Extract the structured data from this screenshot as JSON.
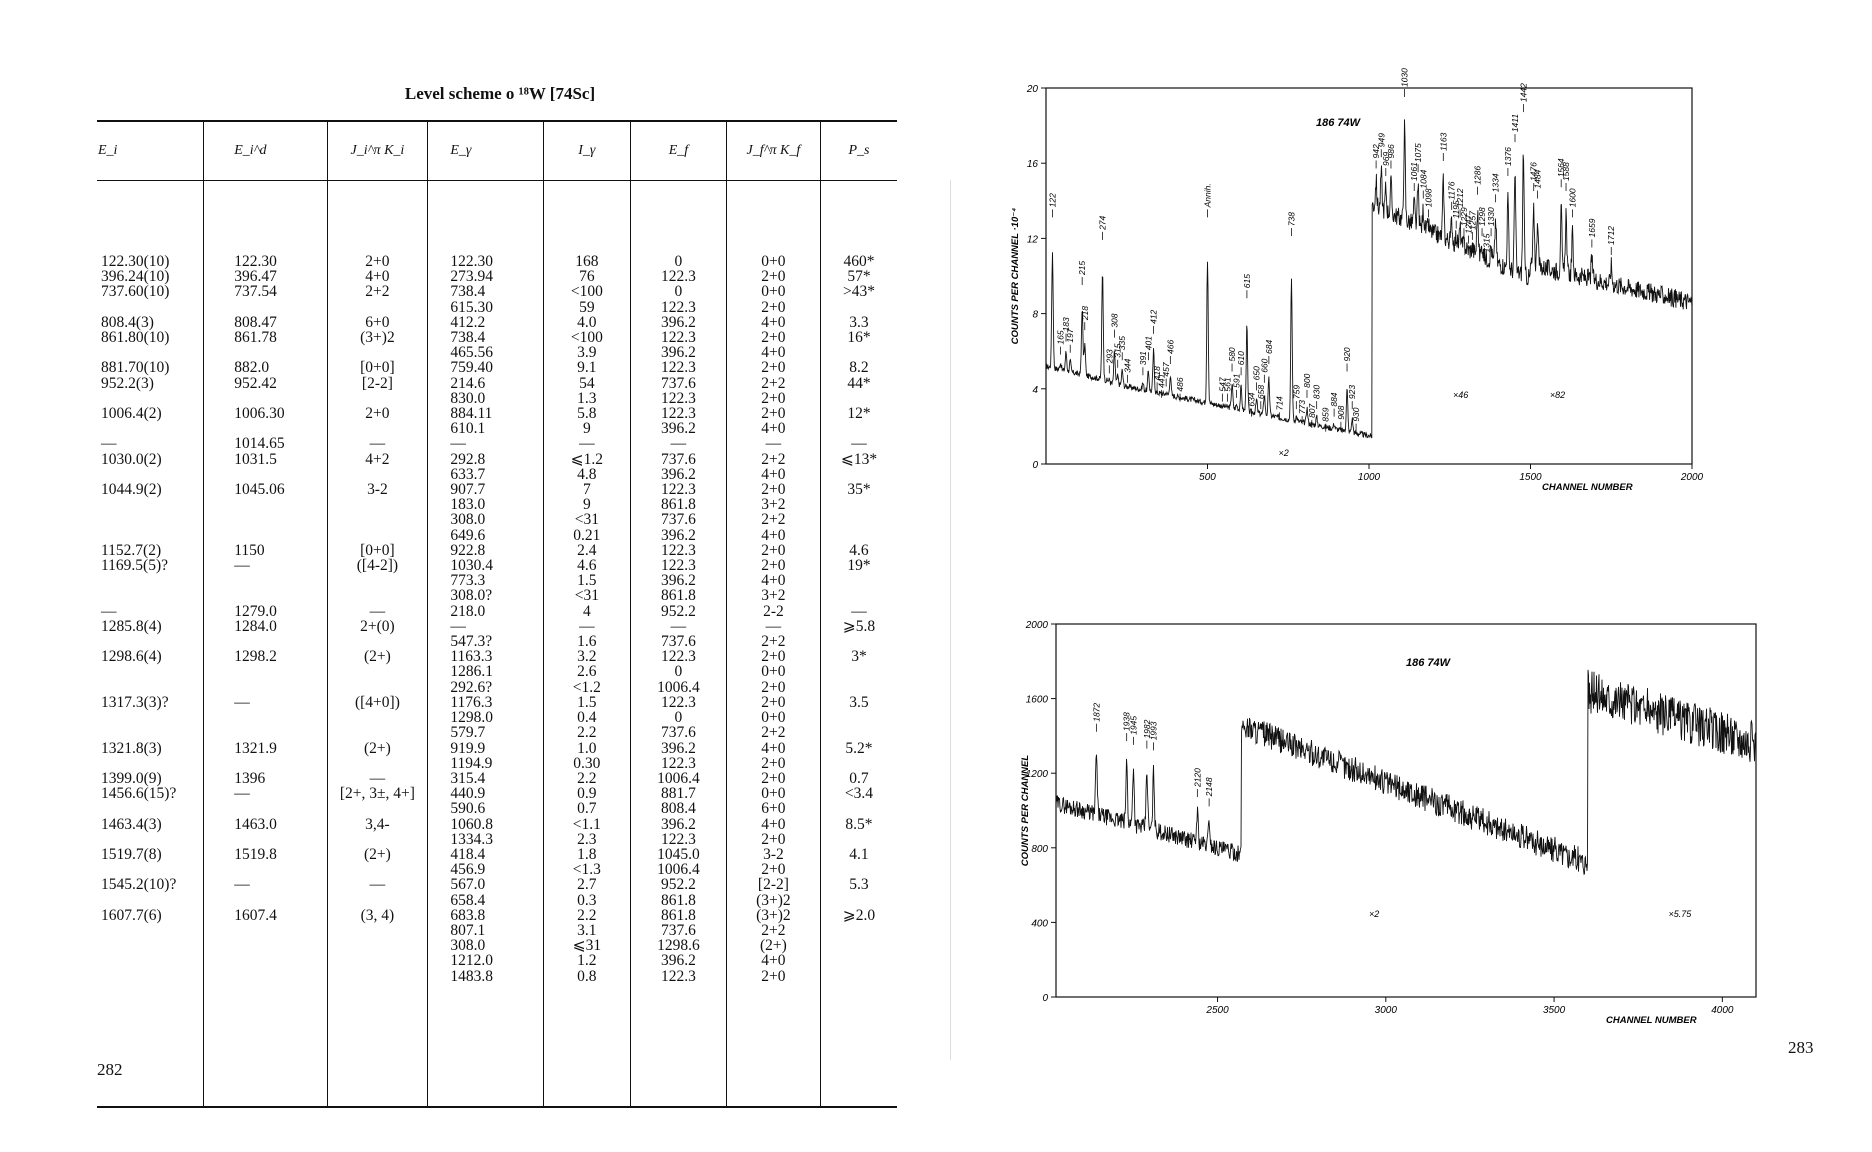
{
  "left_page": {
    "title": "Level scheme o  ¹⁸W [74Sc]",
    "page_number": "282",
    "table": {
      "headers": [
        "E_i",
        "E_i^d",
        "J_i^π K_i",
        "E_γ",
        "I_γ",
        "E_f",
        "J_f^π K_f",
        "P_s"
      ],
      "columns": [
        [
          "122.30(10)",
          "396.24(10)",
          "737.60(10)",
          "",
          "808.4(3)",
          "861.80(10)",
          "",
          "881.70(10)",
          "952.2(3)",
          "",
          "1006.4(2)",
          "",
          "—",
          "1030.0(2)",
          "",
          "1044.9(2)",
          "",
          "",
          "",
          "1152.7(2)",
          "1169.5(5)?",
          "",
          "",
          "—",
          "1285.8(4)",
          "",
          "1298.6(4)",
          "",
          "",
          "1317.3(3)?",
          "",
          "",
          "1321.8(3)",
          "",
          "1399.0(9)",
          "1456.6(15)?",
          "",
          "1463.4(3)",
          "",
          "1519.7(8)",
          "",
          "1545.2(10)?",
          "",
          "1607.7(6)"
        ],
        [
          "122.30",
          "396.47",
          "737.54",
          "",
          "808.47",
          "861.78",
          "",
          "882.0",
          "952.42",
          "",
          "1006.30",
          "",
          "1014.65",
          "1031.5",
          "",
          "1045.06",
          "",
          "",
          "",
          "1150",
          "—",
          "",
          "",
          "1279.0",
          "1284.0",
          "",
          "1298.2",
          "",
          "",
          "—",
          "",
          "",
          "1321.9",
          "",
          "1396",
          "—",
          "",
          "1463.0",
          "",
          "1519.8",
          "",
          "—",
          "",
          "1607.4"
        ],
        [
          "2+0",
          "4+0",
          "2+2",
          "",
          "6+0",
          "(3+)2",
          "",
          "[0+0]",
          "[2-2]",
          "",
          "2+0",
          "",
          "—",
          "4+2",
          "",
          "3-2",
          "",
          "",
          "",
          "[0+0]",
          "([4-2])",
          "",
          "",
          "—",
          "2+(0)",
          "",
          "(2+)",
          "",
          "",
          "([4+0])",
          "",
          "",
          "(2+)",
          "",
          "—",
          "[2+, 3±, 4+]",
          "",
          "3,4-",
          "",
          "(2+)",
          "",
          "—",
          "",
          "(3, 4)"
        ],
        [
          "122.30",
          "273.94",
          "738.4",
          "615.30",
          "412.2",
          "738.4",
          "465.56",
          "759.40",
          "214.6",
          "830.0",
          "884.11",
          "610.1",
          "—",
          "292.8",
          "633.7",
          "907.7",
          "183.0",
          "308.0",
          "649.6",
          "922.8",
          "1030.4",
          "773.3",
          "308.0?",
          "218.0",
          "—",
          "547.3?",
          "1163.3",
          "1286.1",
          "292.6?",
          "1176.3",
          "1298.0",
          "579.7",
          "919.9",
          "1194.9",
          "315.4",
          "440.9",
          "590.6",
          "1060.8",
          "1334.3",
          "418.4",
          "456.9",
          "567.0",
          "658.4",
          "683.8",
          "807.1",
          "308.0",
          "1212.0",
          "1483.8"
        ],
        [
          "168",
          "76",
          "<100",
          "59",
          "4.0",
          "<100",
          "3.9",
          "9.1",
          "54",
          "1.3",
          "5.8",
          "9",
          "—",
          "⩽1.2",
          "4.8",
          "7",
          "9",
          "<31",
          "0.21",
          "2.4",
          "4.6",
          "1.5",
          "<31",
          "4",
          "—",
          "1.6",
          "3.2",
          "2.6",
          "<1.2",
          "1.5",
          "0.4",
          "2.2",
          "1.0",
          "0.30",
          "2.2",
          "0.9",
          "0.7",
          "<1.1",
          "2.3",
          "1.8",
          "<1.3",
          "2.7",
          "0.3",
          "2.2",
          "3.1",
          "⩽31",
          "1.2",
          "0.8"
        ],
        [
          "0",
          "122.3",
          "0",
          "122.3",
          "396.2",
          "122.3",
          "396.2",
          "122.3",
          "737.6",
          "122.3",
          "122.3",
          "396.2",
          "—",
          "737.6",
          "396.2",
          "122.3",
          "861.8",
          "737.6",
          "396.2",
          "122.3",
          "122.3",
          "396.2",
          "861.8",
          "952.2",
          "—",
          "737.6",
          "122.3",
          "0",
          "1006.4",
          "122.3",
          "0",
          "737.6",
          "396.2",
          "122.3",
          "1006.4",
          "881.7",
          "808.4",
          "396.2",
          "122.3",
          "1045.0",
          "1006.4",
          "952.2",
          "861.8",
          "861.8",
          "737.6",
          "1298.6",
          "396.2",
          "122.3"
        ],
        [
          "0+0",
          "2+0",
          "0+0",
          "2+0",
          "4+0",
          "2+0",
          "4+0",
          "2+0",
          "2+2",
          "2+0",
          "2+0",
          "4+0",
          "—",
          "2+2",
          "4+0",
          "2+0",
          "3+2",
          "2+2",
          "4+0",
          "2+0",
          "2+0",
          "4+0",
          "3+2",
          "2-2",
          "—",
          "2+2",
          "2+0",
          "0+0",
          "2+0",
          "2+0",
          "0+0",
          "2+2",
          "4+0",
          "2+0",
          "2+0",
          "0+0",
          "6+0",
          "4+0",
          "2+0",
          "3-2",
          "2+0",
          "[2-2]",
          "(3+)2",
          "(3+)2",
          "2+2",
          "(2+)",
          "4+0",
          "2+0"
        ],
        [
          "460*",
          "57*",
          ">43*",
          "",
          "3.3",
          "16*",
          "",
          "8.2",
          "44*",
          "",
          "12*",
          "",
          "—",
          "⩽13*",
          "",
          "35*",
          "",
          "",
          "",
          "4.6",
          "19*",
          "",
          "",
          "—",
          "⩾5.8",
          "",
          "3*",
          "",
          "",
          "3.5",
          "",
          "",
          "5.2*",
          "",
          "0.7",
          "<3.4",
          "",
          "8.5*",
          "",
          "4.1",
          "",
          "5.3",
          "",
          "⩾2.0"
        ]
      ]
    }
  },
  "right_page": {
    "page_number": "283",
    "chart_data": [
      {
        "type": "line",
        "xlabel": "CHANNEL NUMBER",
        "ylabel": "COUNTS PER CHANNEL ·10⁻⁴",
        "xlim": [
          0,
          2000
        ],
        "ylim": [
          0,
          20
        ],
        "xticks": [
          "500",
          "1000",
          "1500",
          "2000"
        ],
        "yticks": [
          "0",
          "4",
          "8",
          "12",
          "16",
          "20"
        ],
        "nucleus_label": "186 74W",
        "annotations": [
          "×2",
          "×46",
          "×82",
          "Annih."
        ],
        "peak_labels": [
          {
            "label": "122",
            "x": 20,
            "y": 12.8
          },
          {
            "label": "165",
            "x": 45,
            "y": 5.5
          },
          {
            "label": "183",
            "x": 62,
            "y": 6.2
          },
          {
            "label": "197",
            "x": 75,
            "y": 5.6
          },
          {
            "label": "215",
            "x": 112,
            "y": 9.2
          },
          {
            "label": "218",
            "x": 120,
            "y": 6.8
          },
          {
            "label": "274",
            "x": 175,
            "y": 11.6
          },
          {
            "label": "293",
            "x": 196,
            "y": 4.5
          },
          {
            "label": "308",
            "x": 212,
            "y": 6.4
          },
          {
            "label": "315",
            "x": 222,
            "y": 4.8
          },
          {
            "label": "335",
            "x": 236,
            "y": 5.2
          },
          {
            "label": "344",
            "x": 252,
            "y": 4.0
          },
          {
            "label": "391",
            "x": 300,
            "y": 4.4
          },
          {
            "label": "401",
            "x": 317,
            "y": 5.2
          },
          {
            "label": "412",
            "x": 333,
            "y": 6.6
          },
          {
            "label": "418",
            "x": 344,
            "y": 3.6
          },
          {
            "label": "441",
            "x": 358,
            "y": 3.2
          },
          {
            "label": "457",
            "x": 372,
            "y": 3.8
          },
          {
            "label": "466",
            "x": 385,
            "y": 5.0
          },
          {
            "label": "486",
            "x": 415,
            "y": 3.0
          },
          {
            "label": "Annih.",
            "x": 500,
            "y": 12.8
          },
          {
            "label": "547",
            "x": 546,
            "y": 3.0
          },
          {
            "label": "561",
            "x": 562,
            "y": 3.0
          },
          {
            "label": "580",
            "x": 576,
            "y": 4.6
          },
          {
            "label": "591",
            "x": 590,
            "y": 3.2
          },
          {
            "label": "610",
            "x": 604,
            "y": 4.4
          },
          {
            "label": "615",
            "x": 622,
            "y": 8.5
          },
          {
            "label": "634",
            "x": 636,
            "y": 2.2
          },
          {
            "label": "650",
            "x": 652,
            "y": 3.6
          },
          {
            "label": "658",
            "x": 665,
            "y": 2.6
          },
          {
            "label": "660",
            "x": 676,
            "y": 4.0
          },
          {
            "label": "684",
            "x": 690,
            "y": 5.0
          },
          {
            "label": "714",
            "x": 723,
            "y": 2.0
          },
          {
            "label": "738",
            "x": 760,
            "y": 11.8
          },
          {
            "label": "759",
            "x": 775,
            "y": 2.6
          },
          {
            "label": "773",
            "x": 793,
            "y": 1.8
          },
          {
            "label": "800",
            "x": 808,
            "y": 3.2
          },
          {
            "label": "807",
            "x": 823,
            "y": 1.6
          },
          {
            "label": "830",
            "x": 838,
            "y": 2.6
          },
          {
            "label": "859",
            "x": 866,
            "y": 1.4
          },
          {
            "label": "884",
            "x": 892,
            "y": 2.2
          },
          {
            "label": "908",
            "x": 913,
            "y": 1.5
          },
          {
            "label": "920",
            "x": 932,
            "y": 4.6
          },
          {
            "label": "923",
            "x": 948,
            "y": 2.6
          },
          {
            "label": "930",
            "x": 960,
            "y": 1.4
          },
          {
            "label": "942",
            "x": 1022,
            "y": 15.4
          },
          {
            "label": "949",
            "x": 1038,
            "y": 16.0
          },
          {
            "label": "969",
            "x": 1052,
            "y": 15.0
          },
          {
            "label": "986",
            "x": 1068,
            "y": 15.4
          },
          {
            "label": "1030",
            "x": 1110,
            "y": 19.2
          },
          {
            "label": "1061",
            "x": 1140,
            "y": 14.2
          },
          {
            "label": "1075",
            "x": 1152,
            "y": 15.2
          },
          {
            "label": "1084",
            "x": 1168,
            "y": 13.8
          },
          {
            "label": "1098",
            "x": 1184,
            "y": 12.8
          },
          {
            "label": "1163",
            "x": 1230,
            "y": 15.8
          },
          {
            "label": "1176",
            "x": 1256,
            "y": 13.2
          },
          {
            "label": "1195",
            "x": 1270,
            "y": 12.2
          },
          {
            "label": "1212",
            "x": 1282,
            "y": 12.8
          },
          {
            "label": "1229",
            "x": 1294,
            "y": 11.8
          },
          {
            "label": "1247",
            "x": 1308,
            "y": 11.4
          },
          {
            "label": "1257",
            "x": 1320,
            "y": 11.6
          },
          {
            "label": "1286",
            "x": 1336,
            "y": 14.0
          },
          {
            "label": "1298",
            "x": 1350,
            "y": 11.8
          },
          {
            "label": "1315",
            "x": 1364,
            "y": 10.4
          },
          {
            "label": "1330",
            "x": 1378,
            "y": 11.8
          },
          {
            "label": "1334",
            "x": 1392,
            "y": 13.6
          },
          {
            "label": "1376",
            "x": 1430,
            "y": 15.0
          },
          {
            "label": "1411",
            "x": 1452,
            "y": 16.8
          },
          {
            "label": "1442",
            "x": 1478,
            "y": 18.4
          },
          {
            "label": "1476",
            "x": 1510,
            "y": 14.2
          },
          {
            "label": "1484",
            "x": 1522,
            "y": 13.8
          },
          {
            "label": "1564",
            "x": 1595,
            "y": 14.4
          },
          {
            "label": "1588",
            "x": 1610,
            "y": 14.2
          },
          {
            "label": "1600",
            "x": 1630,
            "y": 12.8
          },
          {
            "label": "1659",
            "x": 1690,
            "y": 11.2
          },
          {
            "label": "1712",
            "x": 1750,
            "y": 10.8
          }
        ]
      },
      {
        "type": "line",
        "xlabel": "CHANNEL NUMBER",
        "ylabel": "COUNTS PER CHANNEL",
        "xlim": [
          2020,
          4100
        ],
        "ylim": [
          0,
          2000
        ],
        "xticks": [
          "2500",
          "3000",
          "3500",
          "4000"
        ],
        "yticks": [
          "0",
          "400",
          "800",
          "1200",
          "1600",
          "2000"
        ],
        "nucleus_label": "186 74W",
        "annotations": [
          "×2",
          "×5.75"
        ],
        "peak_labels": [
          {
            "label": "1872",
            "x": 2140,
            "y": 1390
          },
          {
            "label": "1938",
            "x": 2230,
            "y": 1340
          },
          {
            "label": "1945",
            "x": 2250,
            "y": 1320
          },
          {
            "label": "1982",
            "x": 2290,
            "y": 1300
          },
          {
            "label": "1993",
            "x": 2310,
            "y": 1290
          },
          {
            "label": "2120",
            "x": 2440,
            "y": 1040
          },
          {
            "label": "2148",
            "x": 2475,
            "y": 990
          }
        ]
      }
    ]
  }
}
